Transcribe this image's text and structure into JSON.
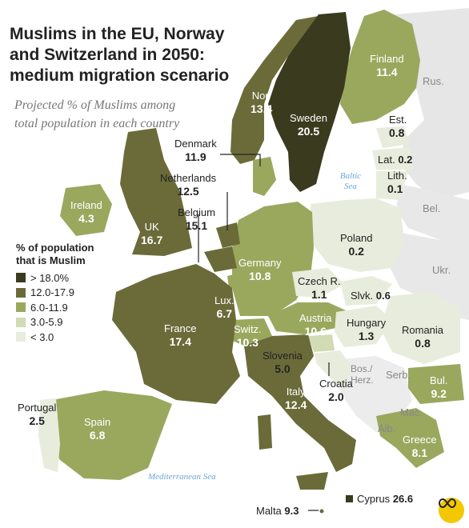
{
  "title": "Muslims in the EU, Norway and Switzerland in 2050: medium migration scenario",
  "subtitle": "Projected % of Muslims among total population in each country",
  "legend": {
    "title_line1": "% of population",
    "title_line2": "that is Muslim",
    "items": [
      {
        "label": "> 18.0%",
        "color": "#3a3a1e"
      },
      {
        "label": "12.0-17.9",
        "color": "#6b6b3a"
      },
      {
        "label": "6.0-11.9",
        "color": "#9aa85e"
      },
      {
        "label": "3.0-5.9",
        "color": "#d1dbb4"
      },
      {
        "label": "< 3.0",
        "color": "#e8ecdc"
      }
    ]
  },
  "countries": {
    "finland": {
      "name": "Finland",
      "value": "11.4"
    },
    "norway": {
      "name": "Nor.",
      "value": "13.4"
    },
    "sweden": {
      "name": "Sweden",
      "value": "20.5"
    },
    "estonia": {
      "name": "Est.",
      "value": "0.8"
    },
    "latvia": {
      "name": "Lat.",
      "value": "0.2"
    },
    "lithuania": {
      "name": "Lith.",
      "value": "0.1"
    },
    "denmark": {
      "name": "Denmark",
      "value": "11.9"
    },
    "netherlands": {
      "name": "Netherlands",
      "value": "12.5"
    },
    "belgium": {
      "name": "Belgium",
      "value": "15.1"
    },
    "ireland": {
      "name": "Ireland",
      "value": "4.3"
    },
    "uk": {
      "name": "UK",
      "value": "16.7"
    },
    "poland": {
      "name": "Poland",
      "value": "0.2"
    },
    "germany": {
      "name": "Germany",
      "value": "10.8"
    },
    "czech": {
      "name": "Czech R.",
      "value": "1.1"
    },
    "slovakia": {
      "name": "Slvk.",
      "value": "0.6"
    },
    "luxembourg": {
      "name": "Lux.",
      "value": "6.7"
    },
    "france": {
      "name": "France",
      "value": "17.4"
    },
    "switzerland": {
      "name": "Switz.",
      "value": "10.3"
    },
    "austria": {
      "name": "Austria",
      "value": "10.6"
    },
    "hungary": {
      "name": "Hungary",
      "value": "1.3"
    },
    "romania": {
      "name": "Romania",
      "value": "0.8"
    },
    "slovenia": {
      "name": "Slovenia",
      "value": "5.0"
    },
    "croatia": {
      "name": "Croatia",
      "value": "2.0"
    },
    "bulgaria": {
      "name": "Bul.",
      "value": "9.2"
    },
    "portugal": {
      "name": "Portugal",
      "value": "2.5"
    },
    "spain": {
      "name": "Spain",
      "value": "6.8"
    },
    "italy": {
      "name": "Italy",
      "value": "12.4"
    },
    "greece": {
      "name": "Greece",
      "value": "8.1"
    },
    "cyprus": {
      "name": "Cyprus",
      "value": "26.6"
    },
    "malta": {
      "name": "Malta",
      "value": "9.3"
    }
  },
  "non_members": {
    "russia": "Rus.",
    "belarus": "Bel.",
    "ukraine": "Ukr.",
    "bosnia": "Bos./ Herz.",
    "serbia": "Serb.",
    "macedonia": "Mac.",
    "albania": "Alb."
  },
  "seas": {
    "baltic": "Baltic Sea",
    "mediterranean": "Mediterranean Sea"
  },
  "logo_icon": "infinity-logo-icon"
}
